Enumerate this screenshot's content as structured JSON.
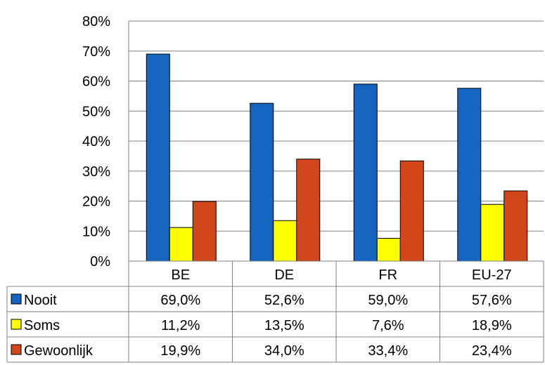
{
  "chart_data": {
    "type": "bar",
    "categories": [
      "BE",
      "DE",
      "FR",
      "EU-27"
    ],
    "series": [
      {
        "name": "Nooit",
        "values": [
          69.0,
          52.6,
          59.0,
          57.6
        ],
        "labels": [
          "69,0%",
          "52,6%",
          "59,0%",
          "57,6%"
        ],
        "color": "#1565C0"
      },
      {
        "name": "Soms",
        "values": [
          11.2,
          13.5,
          7.6,
          18.9
        ],
        "labels": [
          "11,2%",
          "13,5%",
          "7,6%",
          "18,9%"
        ],
        "color": "#FFFF00"
      },
      {
        "name": "Gewoonlijk",
        "values": [
          19.9,
          34.0,
          33.4,
          23.4
        ],
        "labels": [
          "19,9%",
          "34,0%",
          "33,4%",
          "23,4%"
        ],
        "color": "#D2461B"
      }
    ],
    "yticks": [
      "0%",
      "10%",
      "20%",
      "30%",
      "40%",
      "50%",
      "60%",
      "70%",
      "80%"
    ],
    "ylim": [
      0,
      80
    ],
    "grid": true,
    "legend": "data-table"
  }
}
